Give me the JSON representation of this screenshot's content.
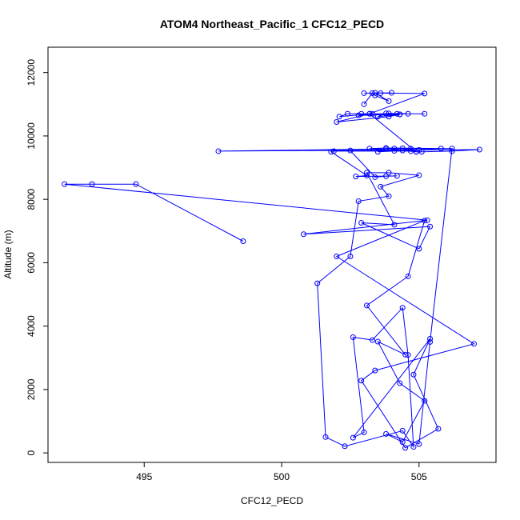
{
  "chart_data": {
    "type": "line",
    "title": "ATOM4 Northeast_Pacific_1 CFC12_PECD",
    "xlabel": "CFC12_PECD",
    "ylabel": "Altitude (m)",
    "xlim": [
      491.5,
      507.8
    ],
    "ylim": [
      -300,
      12800
    ],
    "xticks": [
      495,
      500,
      505
    ],
    "yticks": [
      0,
      2000,
      4000,
      6000,
      8000,
      10000,
      12000
    ],
    "grid": false,
    "series": [
      {
        "color": "#0000ff",
        "marker": "open-circle",
        "x": [
          498.6,
          494.7,
          493.1,
          492.1,
          505.3,
          500.8,
          505.4,
          505.0,
          502.9,
          504.1,
          503.1,
          503.9,
          505.0,
          503.6,
          503.9,
          502.8,
          502.5,
          501.3,
          501.6,
          502.3,
          504.4,
          504.8,
          504.6,
          504.4,
          503.3,
          502.6,
          503.0,
          502.6,
          505.4,
          504.8,
          505.7,
          504.5,
          502.9,
          503.4,
          507.0,
          502.0,
          505.2,
          504.6,
          503.1,
          504.5,
          503.5,
          504.3,
          505.2,
          504.4,
          503.8,
          505.0,
          505.4,
          506.2,
          503.8,
          503.2,
          504.1,
          502.5,
          503.4,
          503.8,
          504.2,
          502.7,
          503.1,
          501.8,
          501.9,
          504.7,
          505.0,
          504.1,
          503.8,
          504.9,
          504.4,
          503.5,
          505.8,
          504.4,
          504.7,
          497.7,
          507.2,
          506.2,
          505.1,
          504.9,
          503.2,
          502.4,
          502.1,
          503.3,
          505.2,
          502.9,
          504.2,
          503.9,
          504.6,
          502.8,
          504.3,
          503.5,
          503.8,
          504.3,
          503.9,
          502.0,
          503.2,
          505.2,
          503.6,
          503.0,
          504.0,
          503.4,
          503.9,
          503.4,
          503.3,
          503.0
        ],
        "y": [
          6680,
          8480,
          8480,
          8480,
          7340,
          6900,
          7140,
          6440,
          7260,
          7200,
          8840,
          8840,
          8760,
          8400,
          8100,
          7940,
          6200,
          5350,
          500,
          210,
          700,
          190,
          3090,
          4580,
          3560,
          3650,
          650,
          480,
          3600,
          2470,
          760,
          160,
          2280,
          2600,
          3440,
          6200,
          7330,
          5570,
          4650,
          3100,
          3510,
          2200,
          1640,
          340,
          600,
          280,
          3500,
          9600,
          9620,
          9600,
          9530,
          9540,
          8700,
          8730,
          8740,
          8720,
          8750,
          9500,
          9520,
          9520,
          9560,
          9600,
          9600,
          9500,
          9540,
          9500,
          9600,
          9610,
          9600,
          9520,
          9570,
          9520,
          9500,
          9500,
          10700,
          10700,
          10610,
          10700,
          10700,
          10700,
          10700,
          10710,
          10700,
          10650,
          10680,
          10610,
          10710,
          10680,
          10610,
          10440,
          10700,
          11340,
          11350,
          11350,
          11360,
          11360,
          11100,
          11280,
          11350,
          11000
        ]
      }
    ]
  }
}
